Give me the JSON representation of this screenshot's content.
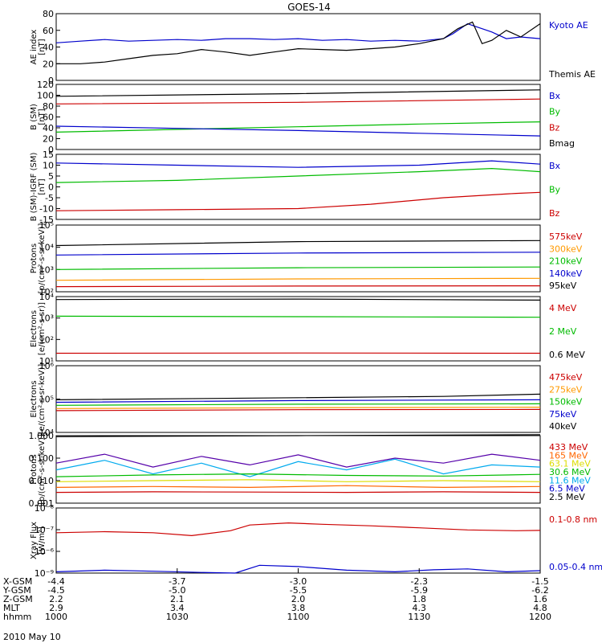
{
  "title": "GOES-14",
  "date": "2010 May 10",
  "chart_data": [
    {
      "type": "line",
      "ylabel": "AE index\n[nT]",
      "yticks": [
        "80",
        "60",
        "40",
        "20",
        "0"
      ],
      "ylim": [
        0,
        80
      ],
      "scale": "linear",
      "legend": [
        {
          "name": "Kyoto AE",
          "color": "#0000cc"
        },
        {
          "name": "Themis AE",
          "color": "#000000"
        }
      ],
      "series": [
        {
          "name": "Kyoto AE",
          "color": "#0000cc",
          "x": [
            0,
            0.05,
            0.1,
            0.15,
            0.2,
            0.25,
            0.3,
            0.35,
            0.4,
            0.45,
            0.5,
            0.55,
            0.6,
            0.65,
            0.7,
            0.75,
            0.8,
            0.82,
            0.85,
            0.88,
            0.9,
            0.93,
            0.96,
            1
          ],
          "y": [
            45,
            47,
            49,
            47,
            48,
            49,
            48,
            50,
            50,
            49,
            50,
            48,
            49,
            47,
            48,
            47,
            50,
            56,
            68,
            62,
            58,
            50,
            52,
            50
          ]
        },
        {
          "name": "Themis AE",
          "color": "#000000",
          "x": [
            0,
            0.05,
            0.1,
            0.15,
            0.2,
            0.25,
            0.3,
            0.35,
            0.4,
            0.45,
            0.5,
            0.55,
            0.6,
            0.65,
            0.7,
            0.75,
            0.8,
            0.83,
            0.86,
            0.88,
            0.9,
            0.93,
            0.96,
            1
          ],
          "y": [
            20,
            20,
            22,
            26,
            30,
            32,
            37,
            34,
            30,
            34,
            38,
            37,
            36,
            38,
            40,
            44,
            50,
            62,
            70,
            44,
            48,
            60,
            52,
            68
          ]
        }
      ]
    },
    {
      "type": "line",
      "ylabel": "B (SM)\n[nT]",
      "yticks": [
        "120",
        "100",
        "80",
        "60",
        "40",
        "20",
        "0"
      ],
      "ylim": [
        0,
        120
      ],
      "scale": "linear",
      "legend": [
        {
          "name": "Bx",
          "color": "#0000cc"
        },
        {
          "name": "By",
          "color": "#00bb00"
        },
        {
          "name": "Bz",
          "color": "#cc0000"
        },
        {
          "name": "Bmag",
          "color": "#000000"
        }
      ],
      "series": [
        {
          "name": "Bmag",
          "color": "#000000",
          "x": [
            0,
            0.5,
            1
          ],
          "y": [
            98,
            103,
            110
          ]
        },
        {
          "name": "Bz",
          "color": "#cc0000",
          "x": [
            0,
            0.5,
            1
          ],
          "y": [
            84,
            87,
            93
          ]
        },
        {
          "name": "By",
          "color": "#00bb00",
          "x": [
            0,
            0.25,
            0.5,
            0.75,
            1
          ],
          "y": [
            32,
            37,
            42,
            47,
            51
          ]
        },
        {
          "name": "Bx",
          "color": "#0000cc",
          "x": [
            0,
            0.25,
            0.5,
            0.75,
            1
          ],
          "y": [
            43,
            39,
            35,
            30,
            25
          ]
        }
      ]
    },
    {
      "type": "line",
      "ylabel": "B (SM)-IGRF (SM)\n[nT]",
      "yticks": [
        "15",
        "10",
        "5",
        "0",
        "-5",
        "-10",
        "-15"
      ],
      "ylim": [
        -15,
        15
      ],
      "scale": "linear",
      "legend": [
        {
          "name": "Bx",
          "color": "#0000cc"
        },
        {
          "name": "By",
          "color": "#00bb00"
        },
        {
          "name": "Bz",
          "color": "#cc0000"
        }
      ],
      "series": [
        {
          "name": "Bx",
          "color": "#0000cc",
          "x": [
            0,
            0.25,
            0.5,
            0.75,
            0.9,
            1
          ],
          "y": [
            11,
            10,
            9,
            10,
            12,
            10.5
          ]
        },
        {
          "name": "By",
          "color": "#00bb00",
          "x": [
            0,
            0.25,
            0.5,
            0.75,
            0.9,
            1
          ],
          "y": [
            2,
            3,
            5,
            7,
            8.5,
            7
          ]
        },
        {
          "name": "Bz",
          "color": "#cc0000",
          "x": [
            0,
            0.25,
            0.5,
            0.65,
            0.8,
            0.95,
            1
          ],
          "y": [
            -11,
            -10.5,
            -10,
            -8,
            -5,
            -3,
            -2.5
          ]
        }
      ]
    },
    {
      "type": "line",
      "ylabel": "Protons\n[p/(cm²-s-sr-keV)]",
      "yticks": [
        "10⁵",
        "10⁴",
        "10³",
        "10²"
      ],
      "ylim": [
        100,
        100000
      ],
      "scale": "log",
      "legend": [
        {
          "name": "575keV",
          "color": "#cc0000"
        },
        {
          "name": "300keV",
          "color": "#ff9900"
        },
        {
          "name": "210keV",
          "color": "#00bb00"
        },
        {
          "name": "140keV",
          "color": "#0000cc"
        },
        {
          "name": "95keV",
          "color": "#000000"
        }
      ],
      "series": [
        {
          "name": "95keV",
          "color": "#000000",
          "x": [
            0,
            0.5,
            1
          ],
          "y": [
            12000,
            18000,
            20000
          ]
        },
        {
          "name": "140keV",
          "color": "#0000cc",
          "x": [
            0,
            0.5,
            1
          ],
          "y": [
            4500,
            5500,
            6000
          ]
        },
        {
          "name": "210keV",
          "color": "#00bb00",
          "x": [
            0,
            0.5,
            1
          ],
          "y": [
            1000,
            1200,
            1300
          ]
        },
        {
          "name": "300keV",
          "color": "#ff9900",
          "x": [
            0,
            0.5,
            1
          ],
          "y": [
            330,
            380,
            400
          ]
        },
        {
          "name": "575keV",
          "color": "#cc0000",
          "x": [
            0,
            0.5,
            1
          ],
          "y": [
            170,
            180,
            185
          ]
        }
      ]
    },
    {
      "type": "line",
      "ylabel": "Electrons\n[e/(cm²-s-sr)]",
      "yticks": [
        "10⁴",
        "10³",
        "10²",
        "10¹"
      ],
      "ylim": [
        10,
        100000
      ],
      "scale": "log",
      "legend": [
        {
          "name": "4 MeV",
          "color": "#cc0000"
        },
        {
          "name": "2 MeV",
          "color": "#00bb00"
        },
        {
          "name": "0.6 MeV",
          "color": "#000000"
        }
      ],
      "series": [
        {
          "name": "0.6 MeV",
          "color": "#000000",
          "x": [
            0,
            0.5,
            1
          ],
          "y": [
            65000,
            70000,
            60000
          ]
        },
        {
          "name": "2 MeV",
          "color": "#00bb00",
          "x": [
            0,
            0.5,
            1
          ],
          "y": [
            6000,
            5600,
            5200
          ]
        },
        {
          "name": "4 MeV",
          "color": "#cc0000",
          "x": [
            0,
            0.5,
            1
          ],
          "y": [
            30,
            31,
            30
          ]
        }
      ]
    },
    {
      "type": "line",
      "ylabel": "Electrons\n[e/(cm²-s-sr-keV)]",
      "yticks": [
        "10⁶",
        "10⁵",
        "10⁴"
      ],
      "ylim": [
        10000,
        1000000
      ],
      "scale": "log",
      "legend": [
        {
          "name": "475keV",
          "color": "#cc0000"
        },
        {
          "name": "275keV",
          "color": "#ff9900"
        },
        {
          "name": "150keV",
          "color": "#00bb00"
        },
        {
          "name": "75keV",
          "color": "#0000cc"
        },
        {
          "name": "40keV",
          "color": "#000000"
        }
      ],
      "series": [
        {
          "name": "40keV",
          "color": "#000000",
          "x": [
            0,
            0.5,
            0.8,
            1
          ],
          "y": [
            95000,
            110000,
            120000,
            140000
          ]
        },
        {
          "name": "75keV",
          "color": "#0000cc",
          "x": [
            0,
            0.5,
            1
          ],
          "y": [
            80000,
            90000,
            95000
          ]
        },
        {
          "name": "150keV",
          "color": "#00bb00",
          "x": [
            0,
            0.5,
            1
          ],
          "y": [
            65000,
            70000,
            72000
          ]
        },
        {
          "name": "275keV",
          "color": "#ff9900",
          "x": [
            0,
            0.5,
            1
          ],
          "y": [
            52000,
            55000,
            57000
          ]
        },
        {
          "name": "475keV",
          "color": "#cc0000",
          "x": [
            0,
            0.5,
            1
          ],
          "y": [
            45000,
            48000,
            49000
          ]
        }
      ]
    },
    {
      "type": "line",
      "ylabel": "Protons\n[p/(cm²-s-sr-keV)]",
      "yticks": [
        "1.000",
        "0.100",
        "0.010",
        "0.001"
      ],
      "ylim": [
        0.001,
        1
      ],
      "scale": "log",
      "legend": [
        {
          "name": "433 MeV",
          "color": "#cc0000"
        },
        {
          "name": "165 MeV",
          "color": "#ff6600"
        },
        {
          "name": "63.1 MeV",
          "color": "#dddd00"
        },
        {
          "name": "30.6 MeV",
          "color": "#00bb00"
        },
        {
          "name": "11.6 MeV",
          "color": "#00aaee"
        },
        {
          "name": "6.5 MeV",
          "color": "#0000cc"
        },
        {
          "name": "2.5 MeV",
          "color": "#000000"
        }
      ],
      "series": [
        {
          "name": "2.5 MeV",
          "color": "#000000",
          "x": [
            0,
            0.5,
            1
          ],
          "y": [
            0.9,
            1.0,
            1.1
          ]
        },
        {
          "name": "6.5 MeV",
          "color": "#5500aa",
          "x": [
            0,
            0.1,
            0.2,
            0.3,
            0.4,
            0.5,
            0.6,
            0.7,
            0.8,
            0.9,
            1
          ],
          "y": [
            0.06,
            0.15,
            0.04,
            0.12,
            0.05,
            0.14,
            0.04,
            0.1,
            0.06,
            0.15,
            0.08
          ]
        },
        {
          "name": "11.6 MeV",
          "color": "#00aaee",
          "x": [
            0,
            0.1,
            0.2,
            0.3,
            0.4,
            0.5,
            0.6,
            0.7,
            0.8,
            0.9,
            1
          ],
          "y": [
            0.03,
            0.08,
            0.02,
            0.06,
            0.015,
            0.07,
            0.03,
            0.09,
            0.02,
            0.05,
            0.04
          ]
        },
        {
          "name": "30.6 MeV",
          "color": "#00bb00",
          "x": [
            0,
            0.2,
            0.4,
            0.6,
            0.8,
            1
          ],
          "y": [
            0.015,
            0.018,
            0.02,
            0.017,
            0.016,
            0.019
          ]
        },
        {
          "name": "63.1 MeV",
          "color": "#dddd00",
          "x": [
            0,
            0.2,
            0.4,
            0.6,
            0.8,
            1
          ],
          "y": [
            0.009,
            0.01,
            0.011,
            0.009,
            0.01,
            0.009
          ]
        },
        {
          "name": "165 MeV",
          "color": "#ff6600",
          "x": [
            0,
            0.2,
            0.4,
            0.6,
            0.8,
            1
          ],
          "y": [
            0.005,
            0.0055,
            0.005,
            0.006,
            0.005,
            0.0055
          ]
        },
        {
          "name": "433 MeV",
          "color": "#cc0000",
          "x": [
            0,
            0.2,
            0.4,
            0.6,
            0.8,
            1
          ],
          "y": [
            0.003,
            0.0032,
            0.0031,
            0.003,
            0.0032,
            0.003
          ]
        }
      ]
    },
    {
      "type": "line",
      "ylabel": "Xray Flux\n[W/m²]",
      "yticks": [
        "10⁻⁸",
        "10⁻⁷",
        "10⁻⁶",
        "10⁻⁹"
      ],
      "ylim": [
        1e-09,
        1e-05
      ],
      "scale": "log",
      "legend": [
        {
          "name": "0.1-0.8 nm",
          "color": "#cc0000"
        },
        {
          "name": "0.05-0.4 nm",
          "color": "#0000cc"
        }
      ],
      "series": [
        {
          "name": "0.1-0.8 nm",
          "color": "#cc0000",
          "x": [
            0,
            0.1,
            0.2,
            0.28,
            0.36,
            0.4,
            0.48,
            0.55,
            0.65,
            0.75,
            0.85,
            0.95,
            1
          ],
          "y": [
            3e-07,
            3.5e-07,
            3e-07,
            2e-07,
            4e-07,
            9e-07,
            1.2e-06,
            1e-06,
            8e-07,
            6e-07,
            4.5e-07,
            4e-07,
            4.2e-07
          ]
        },
        {
          "name": "0.05-0.4 nm",
          "color": "#0000cc",
          "x": [
            0,
            0.1,
            0.2,
            0.3,
            0.37,
            0.42,
            0.5,
            0.6,
            0.7,
            0.78,
            0.85,
            0.93,
            1
          ],
          "y": [
            1.2e-09,
            1.5e-09,
            1.3e-09,
            1.1e-09,
            1e-09,
            3e-09,
            2.5e-09,
            1.5e-09,
            1.2e-09,
            1.6e-09,
            1.8e-09,
            1.2e-09,
            1.4e-09
          ]
        }
      ]
    }
  ],
  "xaxis": {
    "rows": [
      {
        "label": "X-GSM",
        "values": [
          "-4.4",
          "-3.7",
          "-3.0",
          "-2.3",
          "-1.5"
        ]
      },
      {
        "label": "Y-GSM",
        "values": [
          "-4.5",
          "-5.0",
          "-5.5",
          "-5.9",
          "-6.2"
        ]
      },
      {
        "label": "Z-GSM",
        "values": [
          "2.2",
          "2.1",
          "2.0",
          "1.8",
          "1.6"
        ]
      },
      {
        "label": "MLT",
        "values": [
          "2.9",
          "3.4",
          "3.8",
          "4.3",
          "4.8"
        ]
      },
      {
        "label": "hhmm",
        "values": [
          "1000",
          "1030",
          "1100",
          "1130",
          "1200"
        ]
      }
    ]
  }
}
